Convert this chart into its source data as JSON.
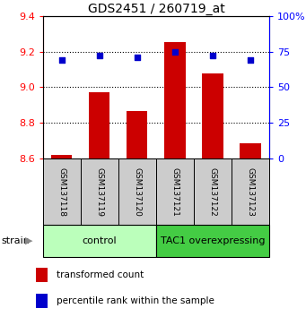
{
  "title": "GDS2451 / 260719_at",
  "samples": [
    "GSM137118",
    "GSM137119",
    "GSM137120",
    "GSM137121",
    "GSM137122",
    "GSM137123"
  ],
  "transformed_counts": [
    8.62,
    8.97,
    8.865,
    9.255,
    9.075,
    8.685
  ],
  "percentile_ranks": [
    69,
    72,
    71,
    75,
    72,
    69
  ],
  "ylim_left": [
    8.6,
    9.4
  ],
  "ylim_right": [
    0,
    100
  ],
  "yticks_left": [
    8.6,
    8.8,
    9.0,
    9.2,
    9.4
  ],
  "yticks_right": [
    0,
    25,
    50,
    75,
    100
  ],
  "bar_color": "#cc0000",
  "dot_color": "#0000cc",
  "bar_bottom": 8.6,
  "groups": [
    {
      "label": "control",
      "start": 0,
      "end": 3,
      "color": "#bbffbb"
    },
    {
      "label": "TAC1 overexpressing",
      "start": 3,
      "end": 6,
      "color": "#44cc44"
    }
  ],
  "strain_label": "strain",
  "legend_bar_label": "transformed count",
  "legend_dot_label": "percentile rank within the sample",
  "sample_box_color": "#cccccc",
  "bar_width": 0.55
}
